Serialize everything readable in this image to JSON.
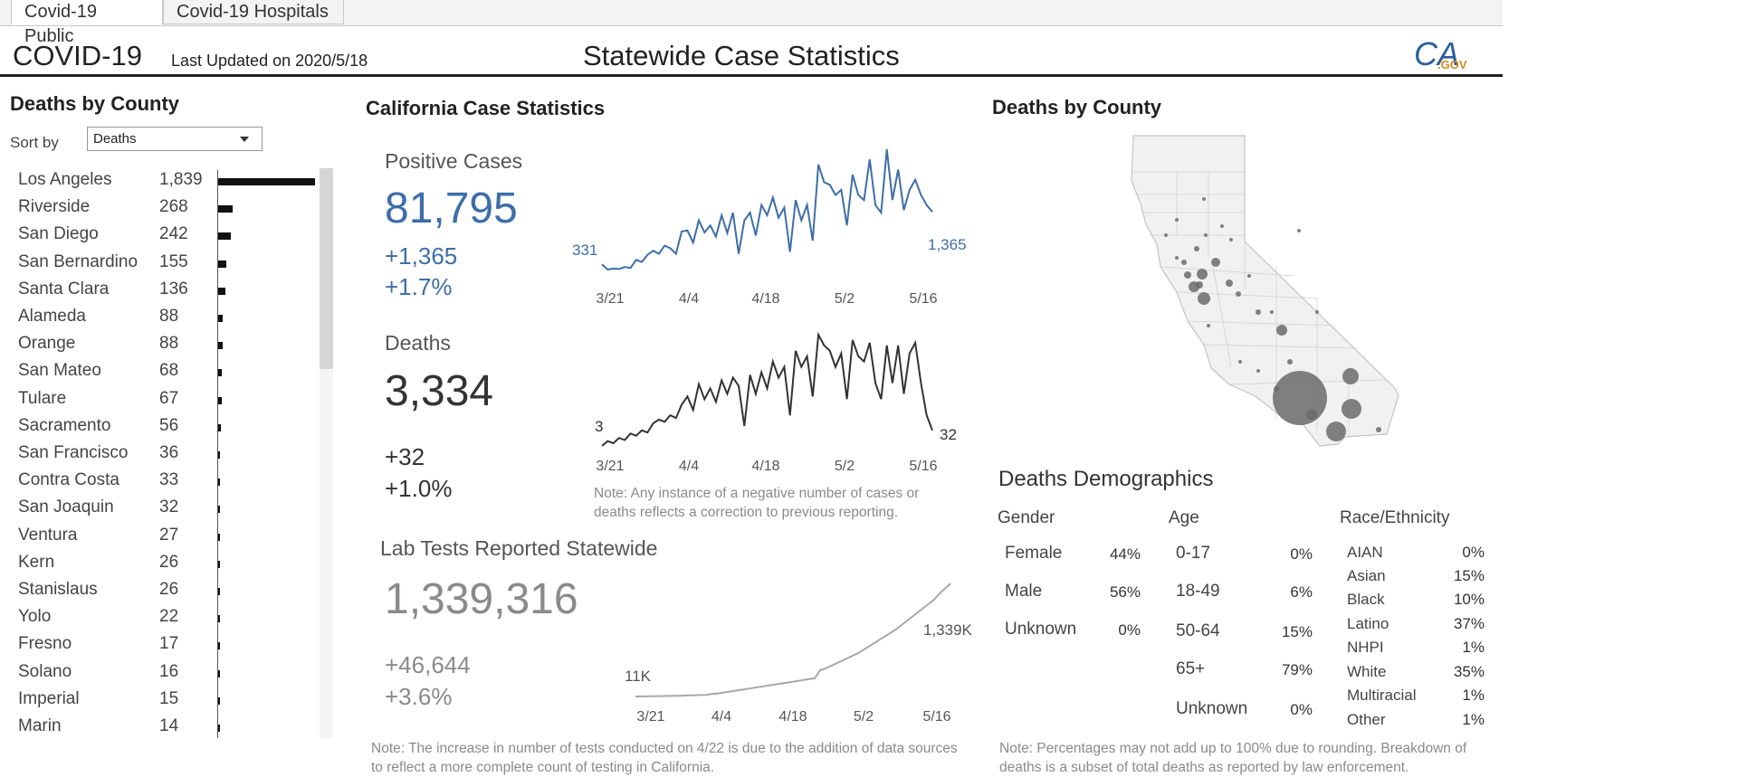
{
  "tabs": [
    {
      "label": "Covid-19 Public",
      "active": true
    },
    {
      "label": "Covid-19 Hospitals",
      "active": false
    }
  ],
  "header": {
    "app_title": "COVID-19",
    "last_updated": "Last Updated on 2020/5/18",
    "page_title": "Statewide Case Statistics",
    "logo_ca": "CA",
    "logo_gov": ".GOV"
  },
  "left_panel": {
    "title": "Deaths by County",
    "sort_label": "Sort by",
    "sort_value": "Deaths",
    "counties": [
      {
        "name": "Los Angeles",
        "deaths": 1839,
        "display": "1,839"
      },
      {
        "name": "Riverside",
        "deaths": 268,
        "display": "268"
      },
      {
        "name": "San Diego",
        "deaths": 242,
        "display": "242"
      },
      {
        "name": "San Bernardino",
        "deaths": 155,
        "display": "155"
      },
      {
        "name": "Santa Clara",
        "deaths": 136,
        "display": "136"
      },
      {
        "name": "Alameda",
        "deaths": 88,
        "display": "88"
      },
      {
        "name": "Orange",
        "deaths": 88,
        "display": "88"
      },
      {
        "name": "San Mateo",
        "deaths": 68,
        "display": "68"
      },
      {
        "name": "Tulare",
        "deaths": 67,
        "display": "67"
      },
      {
        "name": "Sacramento",
        "deaths": 56,
        "display": "56"
      },
      {
        "name": "San Francisco",
        "deaths": 36,
        "display": "36"
      },
      {
        "name": "Contra Costa",
        "deaths": 33,
        "display": "33"
      },
      {
        "name": "San Joaquin",
        "deaths": 32,
        "display": "32"
      },
      {
        "name": "Ventura",
        "deaths": 27,
        "display": "27"
      },
      {
        "name": "Kern",
        "deaths": 26,
        "display": "26"
      },
      {
        "name": "Stanislaus",
        "deaths": 26,
        "display": "26"
      },
      {
        "name": "Yolo",
        "deaths": 22,
        "display": "22"
      },
      {
        "name": "Fresno",
        "deaths": 17,
        "display": "17"
      },
      {
        "name": "Solano",
        "deaths": 16,
        "display": "16"
      },
      {
        "name": "Imperial",
        "deaths": 15,
        "display": "15"
      },
      {
        "name": "Marin",
        "deaths": 14,
        "display": "14"
      }
    ]
  },
  "case_stats": {
    "title": "California Case Statistics",
    "positive": {
      "label": "Positive Cases",
      "total": "81,795",
      "change": "+1,365",
      "pct": "+1.7%",
      "start_label": "331",
      "end_label": "1,365"
    },
    "deaths": {
      "label": "Deaths",
      "total": "3,334",
      "change": "+32",
      "pct": "+1.0%",
      "start_label": "3",
      "end_label": "32"
    },
    "x_ticks": [
      "3/21",
      "4/4",
      "4/18",
      "5/2",
      "5/16"
    ],
    "note": "Note: Any instance of a negative number of cases or deaths reflects a correction to previous reporting.",
    "tests": {
      "label": "Lab Tests Reported Statewide",
      "total": "1,339,316",
      "change": "+46,644",
      "pct": "+3.6%",
      "start_label": "11K",
      "end_label": "1,339K"
    },
    "tests_note": "Note: The increase in number of tests conducted on 4/22 is due to the addition of data sources to reflect a more complete count of testing in California."
  },
  "map_panel": {
    "title": "Deaths by County"
  },
  "demographics": {
    "title": "Deaths Demographics",
    "gender_head": "Gender",
    "gender": [
      {
        "label": "Female",
        "value": "44%"
      },
      {
        "label": "Male",
        "value": "56%"
      },
      {
        "label": "Unknown",
        "value": "0%"
      }
    ],
    "age_head": "Age",
    "age": [
      {
        "label": "0-17",
        "value": "0%"
      },
      {
        "label": "18-49",
        "value": "6%"
      },
      {
        "label": "50-64",
        "value": "15%"
      },
      {
        "label": "65+",
        "value": "79%"
      },
      {
        "label": "Unknown",
        "value": "0%"
      }
    ],
    "race_head": "Race/Ethnicity",
    "race": [
      {
        "label": "AIAN",
        "value": "0%"
      },
      {
        "label": "Asian",
        "value": "15%"
      },
      {
        "label": "Black",
        "value": "10%"
      },
      {
        "label": "Latino",
        "value": "37%"
      },
      {
        "label": "NHPI",
        "value": "1%"
      },
      {
        "label": "White",
        "value": "35%"
      },
      {
        "label": "Multiracial",
        "value": "1%"
      },
      {
        "label": "Other",
        "value": "1%"
      }
    ],
    "note": "Note: Percentages may not add up to 100% due to rounding. Breakdown of deaths is a subset of total deaths as reported by law enforcement."
  },
  "colors": {
    "accent_blue": "#3d6ea8",
    "dark_line": "#333333",
    "gray_line": "#a8a8a8",
    "bar": "#111111",
    "bubble": "#6b6b6b"
  },
  "chart_data": [
    {
      "type": "line",
      "title": "Positive Cases",
      "x_start": "3/21",
      "x_end": "5/18",
      "x_ticks": [
        "3/21",
        "4/4",
        "4/18",
        "5/2",
        "5/16"
      ],
      "series": [
        {
          "values": [
            331,
            230,
            250,
            240,
            280,
            260,
            420,
            380,
            520,
            600,
            540,
            700,
            650,
            540,
            980,
            1000,
            760,
            1200,
            960,
            1100,
            880,
            1300,
            950,
            1350,
            540,
            1200,
            1350,
            900,
            1500,
            1300,
            1650,
            1250,
            1450,
            580,
            1600,
            1200,
            1500,
            800,
            2300,
            1950,
            1900,
            1700,
            1800,
            1100,
            2100,
            1700,
            1600,
            2400,
            1500,
            1350,
            2600,
            1600,
            2200,
            1400,
            1800,
            2000,
            1700,
            1500,
            1365
          ]
        }
      ]
    },
    {
      "type": "line",
      "title": "Deaths",
      "x_start": "3/21",
      "x_end": "5/18",
      "x_ticks": [
        "3/21",
        "4/4",
        "4/18",
        "5/2",
        "5/16"
      ],
      "series": [
        {
          "values": [
            3,
            12,
            8,
            18,
            14,
            26,
            22,
            32,
            28,
            45,
            52,
            48,
            60,
            55,
            80,
            95,
            70,
            118,
            90,
            110,
            85,
            125,
            100,
            130,
            115,
            40,
            135,
            100,
            140,
            110,
            160,
            130,
            150,
            60,
            180,
            150,
            170,
            95,
            210,
            190,
            180,
            150,
            175,
            90,
            200,
            170,
            160,
            195,
            120,
            90,
            190,
            120,
            190,
            100,
            175,
            195,
            120,
            60,
            32
          ]
        }
      ]
    },
    {
      "type": "line",
      "title": "Lab Tests Reported Statewide",
      "x_start": "3/21",
      "x_end": "5/18",
      "x_ticks": [
        "3/21",
        "4/4",
        "4/18",
        "5/2",
        "5/16"
      ],
      "series": [
        {
          "values": [
            11,
            12,
            13,
            14,
            15,
            16,
            17,
            18,
            20,
            22,
            24,
            26,
            28,
            30,
            40,
            45,
            55,
            65,
            75,
            85,
            95,
            105,
            115,
            125,
            135,
            145,
            155,
            165,
            175,
            185,
            195,
            205,
            215,
            225,
            320,
            340,
            370,
            400,
            430,
            460,
            490,
            520,
            560,
            600,
            640,
            680,
            720,
            760,
            800,
            850,
            900,
            950,
            1000,
            1050,
            1100,
            1150,
            1220,
            1280,
            1339
          ]
        }
      ]
    }
  ]
}
